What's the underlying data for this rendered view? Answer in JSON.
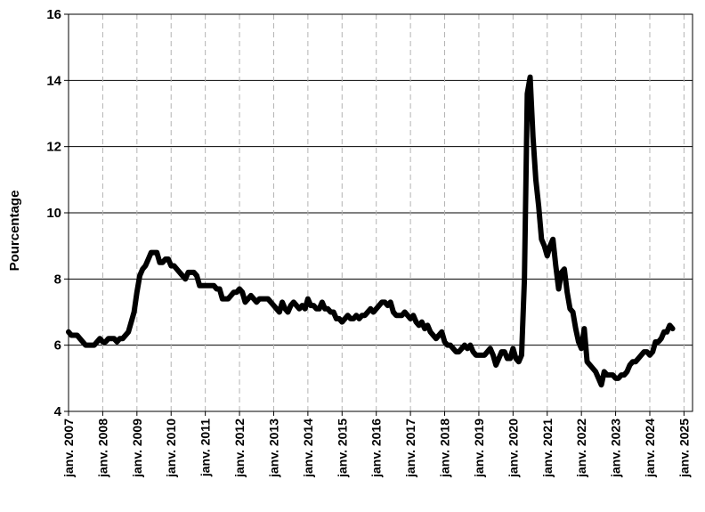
{
  "chart_data": {
    "type": "line",
    "title": "",
    "xlabel": "",
    "ylabel": "Pourcentage",
    "ylim": [
      4,
      16
    ],
    "yticks": [
      "4",
      "6",
      "8",
      "10",
      "12",
      "14",
      "16"
    ],
    "xlim": [
      "2007-01",
      "2025-04"
    ],
    "xticks": [
      "janv. 2007",
      "janv. 2008",
      "janv. 2009",
      "janv. 2010",
      "janv. 2011",
      "janv. 2012",
      "janv. 2013",
      "janv. 2014",
      "janv. 2015",
      "janv. 2016",
      "janv. 2017",
      "janv. 2018",
      "janv. 2019",
      "janv. 2020",
      "janv. 2021",
      "janv. 2022",
      "janv. 2023",
      "janv. 2024",
      "janv. 2025"
    ],
    "grid": {
      "horizontal": "solid",
      "vertical": "dashed"
    },
    "series_color": "#000000",
    "series": [
      {
        "x": [
          "2007-01",
          "2007-02",
          "2007-03",
          "2007-04",
          "2007-05",
          "2007-06",
          "2007-07",
          "2007-08",
          "2007-09",
          "2007-10",
          "2007-11",
          "2007-12",
          "2008-01",
          "2008-02",
          "2008-03",
          "2008-04",
          "2008-05",
          "2008-06",
          "2008-07",
          "2008-08",
          "2008-09",
          "2008-10",
          "2008-11",
          "2008-12",
          "2009-01",
          "2009-02",
          "2009-03",
          "2009-04",
          "2009-05",
          "2009-06",
          "2009-07",
          "2009-08",
          "2009-09",
          "2009-10",
          "2009-11",
          "2009-12",
          "2010-01",
          "2010-02",
          "2010-03",
          "2010-04",
          "2010-05",
          "2010-06",
          "2010-07",
          "2010-08",
          "2010-09",
          "2010-10",
          "2010-11",
          "2010-12",
          "2011-01",
          "2011-02",
          "2011-03",
          "2011-04",
          "2011-05",
          "2011-06",
          "2011-07",
          "2011-08",
          "2011-09",
          "2011-10",
          "2011-11",
          "2011-12",
          "2012-01",
          "2012-02",
          "2012-03",
          "2012-04",
          "2012-05",
          "2012-06",
          "2012-07",
          "2012-08",
          "2012-09",
          "2012-10",
          "2012-11",
          "2012-12",
          "2013-01",
          "2013-02",
          "2013-03",
          "2013-04",
          "2013-05",
          "2013-06",
          "2013-07",
          "2013-08",
          "2013-09",
          "2013-10",
          "2013-11",
          "2013-12",
          "2014-01",
          "2014-02",
          "2014-03",
          "2014-04",
          "2014-05",
          "2014-06",
          "2014-07",
          "2014-08",
          "2014-09",
          "2014-10",
          "2014-11",
          "2014-12",
          "2015-01",
          "2015-02",
          "2015-03",
          "2015-04",
          "2015-05",
          "2015-06",
          "2015-07",
          "2015-08",
          "2015-09",
          "2015-10",
          "2015-11",
          "2015-12",
          "2016-01",
          "2016-02",
          "2016-03",
          "2016-04",
          "2016-05",
          "2016-06",
          "2016-07",
          "2016-08",
          "2016-09",
          "2016-10",
          "2016-11",
          "2016-12",
          "2017-01",
          "2017-02",
          "2017-03",
          "2017-04",
          "2017-05",
          "2017-06",
          "2017-07",
          "2017-08",
          "2017-09",
          "2017-10",
          "2017-11",
          "2017-12",
          "2018-01",
          "2018-02",
          "2018-03",
          "2018-04",
          "2018-05",
          "2018-06",
          "2018-07",
          "2018-08",
          "2018-09",
          "2018-10",
          "2018-11",
          "2018-12",
          "2019-01",
          "2019-02",
          "2019-03",
          "2019-04",
          "2019-05",
          "2019-06",
          "2019-07",
          "2019-08",
          "2019-09",
          "2019-10",
          "2019-11",
          "2019-12",
          "2020-01",
          "2020-02",
          "2020-03",
          "2020-04",
          "2020-05",
          "2020-06",
          "2020-07",
          "2020-08",
          "2020-09",
          "2020-10",
          "2020-11",
          "2020-12",
          "2021-01",
          "2021-02",
          "2021-03",
          "2021-04",
          "2021-05",
          "2021-06",
          "2021-07",
          "2021-08",
          "2021-09",
          "2021-10",
          "2021-11",
          "2021-12",
          "2022-01",
          "2022-02",
          "2022-03",
          "2022-04",
          "2022-05",
          "2022-06",
          "2022-07",
          "2022-08",
          "2022-09",
          "2022-10",
          "2022-11",
          "2022-12",
          "2023-01",
          "2023-02",
          "2023-03",
          "2023-04",
          "2023-05",
          "2023-06",
          "2023-07",
          "2023-08",
          "2023-09",
          "2023-10",
          "2023-11",
          "2023-12",
          "2024-01",
          "2024-02",
          "2024-03",
          "2024-04",
          "2024-05",
          "2024-06",
          "2024-07",
          "2024-08",
          "2024-09"
        ],
        "values": [
          6.4,
          6.3,
          6.3,
          6.3,
          6.2,
          6.1,
          6.0,
          6.0,
          6.0,
          6.0,
          6.1,
          6.2,
          6.1,
          6.1,
          6.2,
          6.2,
          6.2,
          6.1,
          6.2,
          6.2,
          6.3,
          6.4,
          6.7,
          7.0,
          7.6,
          8.1,
          8.3,
          8.4,
          8.6,
          8.8,
          8.8,
          8.8,
          8.5,
          8.5,
          8.6,
          8.6,
          8.4,
          8.4,
          8.3,
          8.2,
          8.1,
          8.0,
          8.2,
          8.2,
          8.2,
          8.1,
          7.8,
          7.8,
          7.8,
          7.8,
          7.8,
          7.8,
          7.7,
          7.7,
          7.4,
          7.4,
          7.4,
          7.5,
          7.6,
          7.6,
          7.7,
          7.6,
          7.3,
          7.4,
          7.5,
          7.4,
          7.3,
          7.4,
          7.4,
          7.4,
          7.4,
          7.3,
          7.2,
          7.1,
          7.0,
          7.3,
          7.1,
          7.0,
          7.2,
          7.3,
          7.2,
          7.1,
          7.2,
          7.1,
          7.4,
          7.2,
          7.2,
          7.1,
          7.1,
          7.3,
          7.1,
          7.1,
          7.0,
          7.0,
          6.8,
          6.8,
          6.7,
          6.8,
          6.9,
          6.8,
          6.8,
          6.9,
          6.8,
          6.9,
          6.9,
          7.0,
          7.1,
          7.0,
          7.1,
          7.2,
          7.3,
          7.3,
          7.2,
          7.3,
          7.0,
          6.9,
          6.9,
          6.9,
          7.0,
          6.9,
          6.8,
          6.9,
          6.7,
          6.6,
          6.7,
          6.5,
          6.6,
          6.4,
          6.3,
          6.2,
          6.3,
          6.4,
          6.1,
          6.0,
          6.0,
          5.9,
          5.8,
          5.8,
          5.9,
          6.0,
          5.9,
          6.0,
          5.8,
          5.7,
          5.7,
          5.7,
          5.7,
          5.8,
          5.9,
          5.7,
          5.4,
          5.6,
          5.8,
          5.8,
          5.6,
          5.6,
          5.9,
          5.6,
          5.5,
          5.7,
          8.0,
          13.6,
          14.1,
          12.3,
          11.0,
          10.2,
          9.2,
          9.0,
          8.7,
          9.0,
          9.2,
          8.4,
          7.7,
          8.2,
          8.3,
          7.6,
          7.1,
          7.0,
          6.5,
          6.1,
          5.9,
          6.5,
          5.5,
          5.4,
          5.3,
          5.2,
          5.0,
          4.8,
          5.2,
          5.1,
          5.1,
          5.1,
          5.0,
          5.0,
          5.1,
          5.1,
          5.2,
          5.4,
          5.5,
          5.5,
          5.6,
          5.7,
          5.8,
          5.8,
          5.7,
          5.8,
          6.1,
          6.1,
          6.2,
          6.4,
          6.4,
          6.6,
          6.5
        ]
      }
    ]
  }
}
